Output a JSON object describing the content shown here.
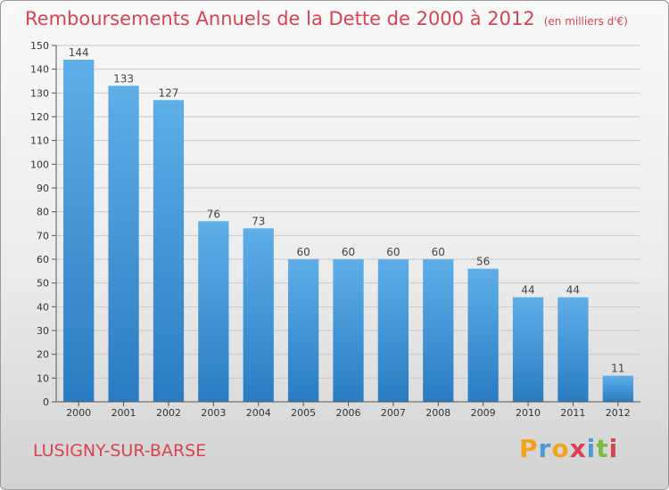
{
  "header": {
    "title": "Remboursements Annuels de la Dette de 2000 à 2012",
    "unit": "(en milliers d'€)"
  },
  "footer": {
    "place": "LUSIGNY-SUR-BARSE",
    "logo_text": "Proxiti",
    "logo_colors": [
      "#f2a31b",
      "#4f9ad6",
      "#f2a31b",
      "#d9434f",
      "#4f9ad6",
      "#7dbb3c",
      "#d9434f"
    ]
  },
  "chart_data": {
    "type": "bar",
    "title": "Remboursements Annuels de la Dette de 2000 à 2012",
    "categories": [
      "2000",
      "2001",
      "2002",
      "2003",
      "2004",
      "2005",
      "2006",
      "2007",
      "2008",
      "2009",
      "2010",
      "2011",
      "2012"
    ],
    "values": [
      144,
      133,
      127,
      76,
      73,
      60,
      60,
      60,
      60,
      56,
      44,
      44,
      11
    ],
    "ylim": [
      0,
      150
    ],
    "yticks": [
      0,
      10,
      20,
      30,
      40,
      50,
      60,
      70,
      80,
      90,
      100,
      110,
      120,
      130,
      140,
      150
    ],
    "grid": true,
    "bar_color_top": "#5eaee8",
    "bar_color_bottom": "#2a7cc2",
    "label_color": "#444444"
  }
}
